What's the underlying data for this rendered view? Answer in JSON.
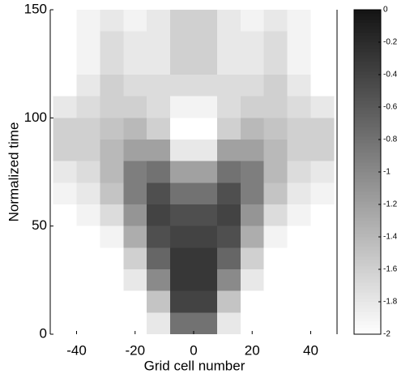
{
  "chart_data": {
    "type": "heatmap",
    "xlabel": "Grid cell number",
    "ylabel": "Normalized time",
    "x": [
      -44,
      -36,
      -28,
      -20,
      -12,
      -4,
      4,
      12,
      20,
      28,
      36,
      44
    ],
    "y": [
      5,
      15,
      25,
      35,
      45,
      55,
      65,
      75,
      85,
      95,
      105,
      115,
      125,
      135,
      145
    ],
    "values": [
      [
        null,
        null,
        null,
        null,
        -1.8,
        -0.8,
        -0.8,
        -1.8,
        null,
        null,
        null,
        null
      ],
      [
        null,
        null,
        null,
        null,
        -1.5,
        -0.4,
        -0.4,
        -1.5,
        null,
        null,
        null,
        null
      ],
      [
        null,
        null,
        null,
        -1.8,
        -1.0,
        -0.3,
        -0.3,
        -1.0,
        -1.8,
        null,
        null,
        null
      ],
      [
        null,
        null,
        null,
        -1.6,
        -0.7,
        -0.3,
        -0.3,
        -0.7,
        -1.6,
        null,
        null,
        null
      ],
      [
        null,
        null,
        -1.9,
        -1.3,
        -0.5,
        -0.4,
        -0.4,
        -0.5,
        -1.3,
        -1.9,
        null,
        null
      ],
      [
        null,
        -1.9,
        -1.7,
        -1.1,
        -0.4,
        -0.5,
        -0.5,
        -0.4,
        -1.1,
        -1.7,
        -1.9,
        null
      ],
      [
        -1.9,
        -1.8,
        -1.5,
        -0.9,
        -0.5,
        -0.8,
        -0.8,
        -0.5,
        -0.9,
        -1.5,
        -1.8,
        -1.9
      ],
      [
        -1.8,
        -1.7,
        -1.4,
        -0.9,
        -0.8,
        -1.2,
        -1.2,
        -0.8,
        -0.9,
        -1.4,
        -1.7,
        -1.8
      ],
      [
        -1.6,
        -1.6,
        -1.4,
        -1.2,
        -1.2,
        -1.8,
        -1.8,
        -1.2,
        -1.2,
        -1.4,
        -1.6,
        -1.6
      ],
      [
        -1.6,
        -1.6,
        -1.5,
        -1.4,
        -1.6,
        null,
        null,
        -1.6,
        -1.4,
        -1.5,
        -1.6,
        -1.6
      ],
      [
        -1.8,
        -1.7,
        -1.6,
        -1.6,
        -1.7,
        -1.9,
        -1.9,
        -1.7,
        -1.6,
        -1.6,
        -1.7,
        -1.8
      ],
      [
        null,
        -1.8,
        -1.6,
        -1.7,
        -1.7,
        -1.7,
        -1.7,
        -1.7,
        -1.7,
        -1.6,
        -1.8,
        null
      ],
      [
        null,
        -1.9,
        -1.7,
        -1.8,
        -1.8,
        -1.6,
        -1.6,
        -1.8,
        -1.8,
        -1.7,
        -1.9,
        null
      ],
      [
        null,
        -1.9,
        -1.7,
        -1.8,
        -1.8,
        -1.6,
        -1.6,
        -1.8,
        -1.8,
        -1.7,
        -1.9,
        null
      ],
      [
        null,
        -1.9,
        -1.8,
        -1.9,
        -1.8,
        -1.6,
        -1.6,
        -1.8,
        -1.9,
        -1.8,
        -1.9,
        null
      ]
    ],
    "xlim": [
      -49,
      49
    ],
    "xticks": [
      -40,
      -20,
      0,
      20,
      40
    ],
    "ylim": [
      0,
      150
    ],
    "yticks": [
      0,
      50,
      100,
      150
    ],
    "clim": [
      -2,
      0
    ],
    "cticks": [
      0,
      -0.2,
      -0.4,
      -0.6,
      -0.8,
      -1,
      -1.2,
      -1.4,
      -1.6,
      -1.8,
      -2
    ],
    "colormap": "gray"
  }
}
